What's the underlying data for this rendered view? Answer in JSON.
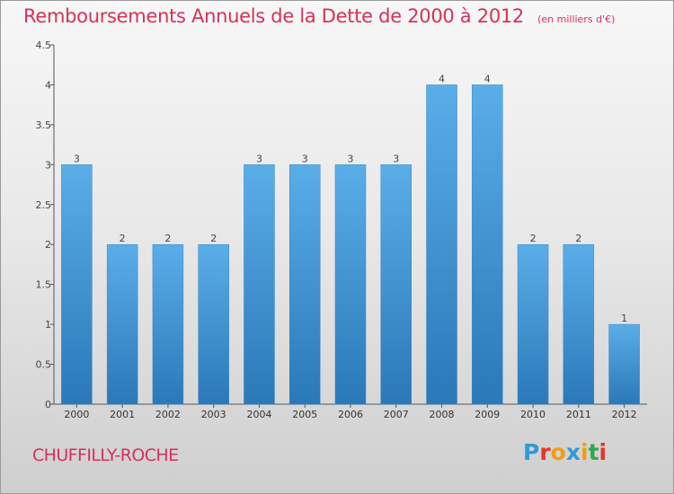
{
  "header": {
    "title": "Remboursements Annuels de la Dette de 2000 à 2012",
    "unit": "(en milliers d'€)"
  },
  "footer": {
    "commune": "CHUFFILLY-ROCHE",
    "brand": "Proxiti"
  },
  "colors": {
    "title": "#d6315a",
    "bar_top": "#5aaee8",
    "bar_bottom": "#2a78b8",
    "axis": "#555555",
    "brand_letters": [
      "#2f9ad8",
      "#e8332a",
      "#f39c12",
      "#2f9ad8",
      "#f39c12",
      "#2fa84f",
      "#e8332a"
    ]
  },
  "chart_data": {
    "type": "bar",
    "categories": [
      "2000",
      "2001",
      "2002",
      "2003",
      "2004",
      "2005",
      "2006",
      "2007",
      "2008",
      "2009",
      "2010",
      "2011",
      "2012"
    ],
    "values": [
      3,
      2,
      2,
      2,
      3,
      3,
      3,
      3,
      4,
      4,
      2,
      2,
      1
    ],
    "data_labels": [
      "3",
      "2",
      "2",
      "2",
      "3",
      "3",
      "3",
      "3",
      "4",
      "4",
      "2",
      "2",
      "1"
    ],
    "yticks": [
      0,
      0.5,
      1,
      1.5,
      2,
      2.5,
      3,
      3.5,
      4,
      4.5
    ],
    "ytick_labels": [
      "0",
      "0.5",
      "1",
      "1.5",
      "2",
      "2.5",
      "3",
      "3.5",
      "4",
      "4.5"
    ],
    "ylim": [
      0,
      4.5
    ],
    "title": "Remboursements Annuels de la Dette de 2000 à 2012",
    "xlabel": "",
    "ylabel": "",
    "grid": false
  }
}
